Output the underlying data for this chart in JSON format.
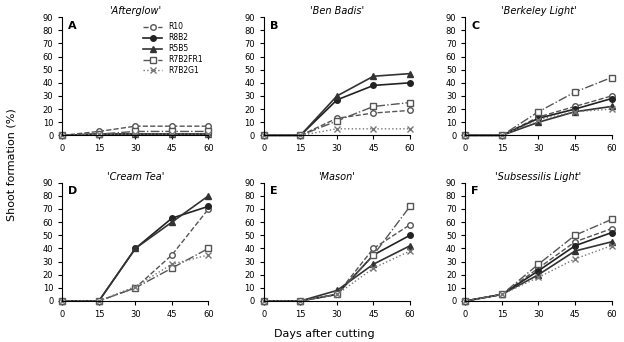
{
  "days": [
    0,
    15,
    30,
    45,
    60
  ],
  "panels": [
    {
      "label": "A",
      "title": "'Afterglow'",
      "show_legend": true,
      "R10": [
        0,
        3,
        7,
        7,
        7
      ],
      "R8B2": [
        0,
        1,
        1,
        1,
        1
      ],
      "R5B5": [
        0,
        1,
        1,
        1,
        1
      ],
      "R7B2FR1": [
        0,
        1,
        3,
        3,
        3
      ],
      "R7B2G1": [
        0,
        1,
        1,
        1,
        1
      ]
    },
    {
      "label": "B",
      "title": "'Ben Badis'",
      "show_legend": false,
      "R10": [
        0,
        0,
        13,
        17,
        19
      ],
      "R8B2": [
        0,
        0,
        27,
        38,
        40
      ],
      "R5B5": [
        0,
        0,
        30,
        45,
        47
      ],
      "R7B2FR1": [
        0,
        0,
        11,
        22,
        25
      ],
      "R7B2G1": [
        0,
        0,
        5,
        5,
        5
      ]
    },
    {
      "label": "C",
      "title": "'Berkeley Light'",
      "show_legend": false,
      "R10": [
        0,
        0,
        14,
        22,
        30
      ],
      "R8B2": [
        0,
        0,
        13,
        20,
        28
      ],
      "R5B5": [
        0,
        0,
        10,
        18,
        22
      ],
      "R7B2FR1": [
        0,
        0,
        18,
        33,
        44
      ],
      "R7B2G1": [
        0,
        0,
        12,
        18,
        20
      ]
    },
    {
      "label": "D",
      "title": "'Cream Tea'",
      "show_legend": false,
      "R10": [
        0,
        0,
        10,
        35,
        70
      ],
      "R8B2": [
        0,
        0,
        40,
        63,
        72
      ],
      "R5B5": [
        0,
        0,
        40,
        60,
        80
      ],
      "R7B2FR1": [
        0,
        0,
        10,
        25,
        40
      ],
      "R7B2G1": [
        0,
        0,
        11,
        28,
        35
      ]
    },
    {
      "label": "E",
      "title": "'Mason'",
      "show_legend": false,
      "R10": [
        0,
        0,
        5,
        40,
        58
      ],
      "R8B2": [
        0,
        0,
        5,
        35,
        50
      ],
      "R5B5": [
        0,
        0,
        8,
        28,
        42
      ],
      "R7B2FR1": [
        0,
        0,
        5,
        35,
        72
      ],
      "R7B2G1": [
        0,
        0,
        5,
        25,
        38
      ]
    },
    {
      "label": "F",
      "title": "'Subsessilis Light'",
      "show_legend": false,
      "R10": [
        0,
        5,
        25,
        45,
        55
      ],
      "R8B2": [
        0,
        5,
        23,
        42,
        52
      ],
      "R5B5": [
        0,
        5,
        20,
        38,
        45
      ],
      "R7B2FR1": [
        0,
        5,
        28,
        50,
        62
      ],
      "R7B2G1": [
        0,
        5,
        18,
        32,
        42
      ]
    }
  ],
  "series_styles": {
    "R10": {
      "color": "#555555",
      "linestyle": "--",
      "marker": "o",
      "markerfacecolor": "white",
      "markersize": 4,
      "linewidth": 1.0
    },
    "R8B2": {
      "color": "#222222",
      "linestyle": "-",
      "marker": "o",
      "markerfacecolor": "#222222",
      "markersize": 4,
      "linewidth": 1.2
    },
    "R5B5": {
      "color": "#333333",
      "linestyle": "-",
      "marker": "^",
      "markerfacecolor": "#333333",
      "markersize": 4,
      "linewidth": 1.2
    },
    "R7B2FR1": {
      "color": "#555555",
      "linestyle": "-.",
      "marker": "s",
      "markerfacecolor": "white",
      "markersize": 4,
      "linewidth": 1.0
    },
    "R7B2G1": {
      "color": "#777777",
      "linestyle": ":",
      "marker": "x",
      "markerfacecolor": "#777777",
      "markersize": 4,
      "linewidth": 1.0
    }
  },
  "ylim": [
    0,
    90
  ],
  "yticks": [
    0,
    10,
    20,
    30,
    40,
    50,
    60,
    70,
    80,
    90
  ],
  "xlim": [
    0,
    60
  ],
  "xticks": [
    0,
    15,
    30,
    45,
    60
  ],
  "xlabel": "Days after cutting",
  "ylabel": "Shoot formation (%)",
  "legend_labels": [
    "R10",
    "R8B2",
    "R5B5",
    "R7B2FR1",
    "R7B2G1"
  ]
}
